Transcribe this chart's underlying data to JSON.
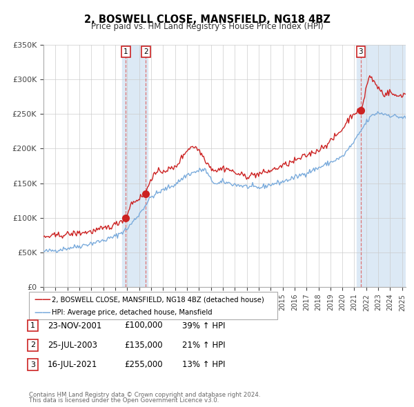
{
  "title": "2, BOSWELL CLOSE, MANSFIELD, NG18 4BZ",
  "subtitle": "Price paid vs. HM Land Registry's House Price Index (HPI)",
  "legend_line1": "2, BOSWELL CLOSE, MANSFIELD, NG18 4BZ (detached house)",
  "legend_line2": "HPI: Average price, detached house, Mansfield",
  "footer1": "Contains HM Land Registry data © Crown copyright and database right 2024.",
  "footer2": "This data is licensed under the Open Government Licence v3.0.",
  "transactions": [
    {
      "num": 1,
      "date_year": 2001.895,
      "price": 100000,
      "label": "23-NOV-2001",
      "price_str": "£100,000",
      "pct": "39% ↑ HPI"
    },
    {
      "num": 2,
      "date_year": 2003.558,
      "price": 135000,
      "label": "25-JUL-2003",
      "price_str": "£135,000",
      "pct": "21% ↑ HPI"
    },
    {
      "num": 3,
      "date_year": 2021.538,
      "price": 255000,
      "label": "16-JUL-2021",
      "price_str": "£255,000",
      "pct": "13% ↑ HPI"
    }
  ],
  "hpi_color": "#7aabdc",
  "price_color": "#cc2222",
  "shading_color": "#dce9f5",
  "vline_color": "#dd6666",
  "ylim": [
    0,
    350000
  ],
  "yticks": [
    0,
    50000,
    100000,
    150000,
    200000,
    250000,
    300000,
    350000
  ],
  "ytick_labels": [
    "£0",
    "£50K",
    "£100K",
    "£150K",
    "£200K",
    "£250K",
    "£300K",
    "£350K"
  ],
  "xstart": 1995.0,
  "xend": 2025.3,
  "hpi_anchors_x": [
    1995.0,
    1996.0,
    1997.0,
    1998.0,
    1999.0,
    2000.0,
    2001.0,
    2002.0,
    2003.0,
    2004.0,
    2005.0,
    2006.0,
    2007.0,
    2008.0,
    2008.5,
    2009.0,
    2009.5,
    2010.0,
    2011.0,
    2012.0,
    2013.0,
    2014.0,
    2015.0,
    2016.0,
    2017.0,
    2018.0,
    2019.0,
    2020.0,
    2021.0,
    2022.0,
    2022.5,
    2023.0,
    2024.0,
    2025.0,
    2025.3
  ],
  "hpi_anchors_y": [
    51000,
    53000,
    56000,
    59000,
    63000,
    67000,
    73000,
    84000,
    105000,
    130000,
    140000,
    148000,
    162000,
    168000,
    170000,
    155000,
    148000,
    152000,
    148000,
    145000,
    143000,
    148000,
    152000,
    158000,
    165000,
    172000,
    180000,
    188000,
    210000,
    238000,
    248000,
    252000,
    248000,
    245000,
    244000
  ],
  "price_anchors_x": [
    1995.0,
    1996.0,
    1997.0,
    1998.0,
    1999.0,
    2000.0,
    2001.0,
    2001.895,
    2002.3,
    2003.0,
    2003.558,
    2004.0,
    2004.5,
    2005.0,
    2006.0,
    2007.0,
    2007.5,
    2008.0,
    2008.5,
    2009.0,
    2009.5,
    2010.0,
    2010.5,
    2011.0,
    2011.5,
    2012.0,
    2012.5,
    2013.0,
    2014.0,
    2015.0,
    2016.0,
    2017.0,
    2018.0,
    2019.0,
    2020.0,
    2020.5,
    2021.0,
    2021.538,
    2021.8,
    2022.0,
    2022.3,
    2022.5,
    2023.0,
    2023.5,
    2024.0,
    2024.5,
    2025.0,
    2025.3
  ],
  "price_anchors_y": [
    72000,
    74000,
    76000,
    78000,
    80000,
    84000,
    90000,
    100000,
    120000,
    128000,
    135000,
    158000,
    165000,
    168000,
    172000,
    198000,
    204000,
    198000,
    185000,
    172000,
    168000,
    172000,
    170000,
    165000,
    162000,
    160000,
    162000,
    163000,
    168000,
    175000,
    182000,
    190000,
    198000,
    210000,
    228000,
    242000,
    252000,
    255000,
    270000,
    290000,
    305000,
    300000,
    288000,
    278000,
    282000,
    275000,
    278000,
    279000
  ]
}
